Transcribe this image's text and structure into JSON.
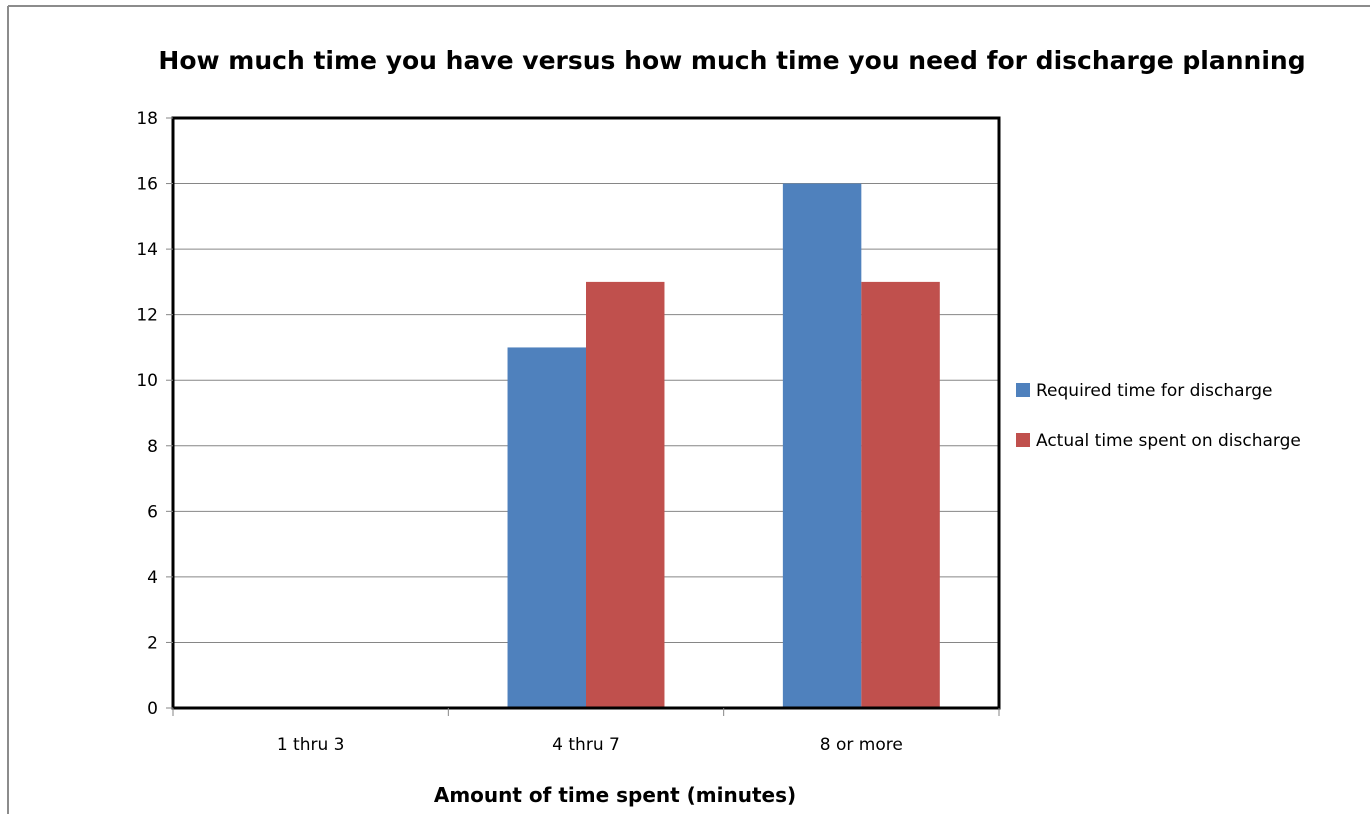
{
  "chart_data": {
    "type": "bar",
    "title": "How much time you have versus how much time you need for discharge planning",
    "xlabel": "Amount of time spent (minutes)",
    "ylabel": "",
    "categories": [
      "1 thru 3",
      "4 thru 7",
      "8 or more"
    ],
    "series": [
      {
        "name": "Required time for discharge",
        "values": [
          0,
          11,
          16
        ],
        "color": "#4F81BD"
      },
      {
        "name": "Actual time spent on discharge",
        "values": [
          0,
          13,
          13
        ],
        "color": "#C0504D"
      }
    ],
    "ylim": [
      0,
      18
    ],
    "yticks": [
      "0",
      "2",
      "4",
      "6",
      "8",
      "10",
      "12",
      "14",
      "16",
      "18"
    ],
    "grid": true,
    "legend": "right"
  }
}
